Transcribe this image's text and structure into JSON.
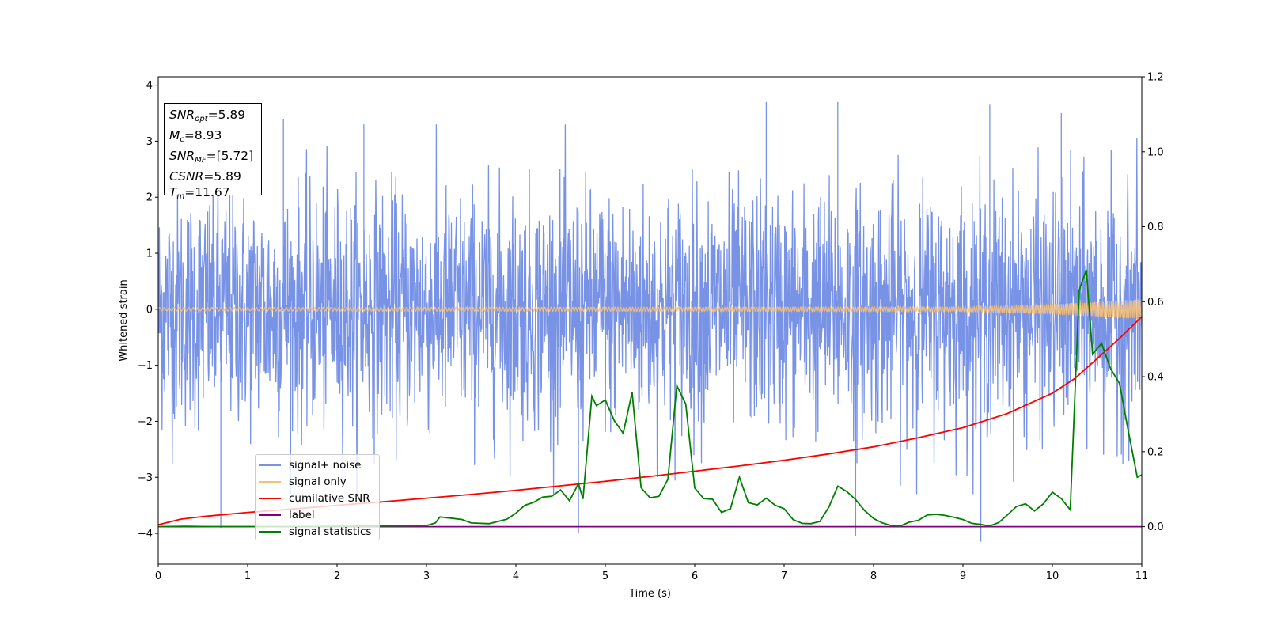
{
  "chart_data": {
    "type": "line",
    "xlabel": "Time (s)",
    "ylabel": "Whitened strain",
    "xlim": [
      0,
      11
    ],
    "ylim_left": [
      -4.55,
      4.15
    ],
    "ylim_right": [
      -0.1,
      1.2
    ],
    "x_ticks": [
      "0",
      "1",
      "2",
      "3",
      "4",
      "5",
      "6",
      "7",
      "8",
      "9",
      "10",
      "11"
    ],
    "y_ticks_left": [
      "−4",
      "−3",
      "−2",
      "−1",
      "0",
      "1",
      "2",
      "3",
      "4"
    ],
    "y_ticks_right": [
      "0.0",
      "0.2",
      "0.4",
      "0.6",
      "0.8",
      "1.0",
      "1.2"
    ],
    "legend_placement": "lower-left",
    "series": [
      {
        "name": "signal+ noise",
        "color": "#7893e6",
        "axis": "left",
        "description_values": {
          "typical_range": [
            -2.6,
            2.6
          ],
          "peaks": [
            [
              0.7,
              -3.9
            ],
            [
              1.4,
              3.4
            ],
            [
              2.3,
              3.3
            ],
            [
              4.7,
              -4.0
            ],
            [
              6.8,
              3.7
            ],
            [
              7.6,
              3.7
            ],
            [
              7.8,
              -4.05
            ],
            [
              9.2,
              -4.15
            ],
            [
              9.3,
              3.65
            ],
            [
              10.1,
              3.5
            ]
          ]
        }
      },
      {
        "name": "signal only",
        "color": "#f5c07a",
        "axis": "left",
        "envelope": [
          [
            0,
            0.03
          ],
          [
            9.0,
            0.04
          ],
          [
            9.5,
            0.06
          ],
          [
            10.0,
            0.09
          ],
          [
            10.5,
            0.13
          ],
          [
            11.0,
            0.18
          ]
        ]
      },
      {
        "name": "cumilative SNR",
        "color": "#ff0000",
        "axis": "right",
        "x": [
          0,
          0.25,
          0.5,
          1,
          1.5,
          2,
          2.5,
          3,
          3.5,
          4,
          4.5,
          5,
          5.5,
          6,
          6.5,
          7,
          7.5,
          8,
          8.5,
          9,
          9.5,
          10,
          10.25,
          10.5,
          10.75,
          11
        ],
        "y": [
          0.005,
          0.02,
          0.027,
          0.038,
          0.047,
          0.057,
          0.066,
          0.076,
          0.086,
          0.097,
          0.109,
          0.121,
          0.134,
          0.148,
          0.162,
          0.177,
          0.194,
          0.213,
          0.237,
          0.264,
          0.302,
          0.356,
          0.395,
          0.448,
          0.502,
          0.56
        ]
      },
      {
        "name": "label",
        "color": "#800080",
        "axis": "right",
        "x": [
          0,
          11
        ],
        "y": [
          0,
          0
        ]
      },
      {
        "name": "signal statistics",
        "color": "#008000",
        "axis": "right",
        "x": [
          0,
          0.3,
          0.6,
          1.0,
          1.5,
          2.0,
          2.5,
          3.0,
          3.1,
          3.15,
          3.3,
          3.4,
          3.5,
          3.7,
          3.9,
          4.0,
          4.1,
          4.2,
          4.3,
          4.4,
          4.5,
          4.6,
          4.7,
          4.75,
          4.85,
          4.9,
          5.0,
          5.1,
          5.2,
          5.3,
          5.4,
          5.5,
          5.6,
          5.7,
          5.8,
          5.9,
          6.0,
          6.1,
          6.2,
          6.3,
          6.4,
          6.5,
          6.6,
          6.7,
          6.8,
          6.9,
          7.0,
          7.1,
          7.2,
          7.3,
          7.4,
          7.5,
          7.6,
          7.7,
          7.8,
          7.9,
          8.0,
          8.1,
          8.2,
          8.3,
          8.4,
          8.5,
          8.6,
          8.7,
          8.8,
          8.9,
          9.0,
          9.1,
          9.2,
          9.3,
          9.4,
          9.5,
          9.6,
          9.7,
          9.8,
          9.9,
          10.0,
          10.1,
          10.2,
          10.3,
          10.38,
          10.45,
          10.55,
          10.65,
          10.75,
          10.85,
          10.95,
          11.0
        ],
        "y": [
          0.0,
          0.001,
          0.0,
          0.0,
          0.0,
          0.001,
          0.002,
          0.003,
          0.01,
          0.026,
          0.022,
          0.019,
          0.01,
          0.008,
          0.02,
          0.036,
          0.057,
          0.065,
          0.079,
          0.081,
          0.098,
          0.069,
          0.115,
          0.074,
          0.348,
          0.323,
          0.338,
          0.283,
          0.249,
          0.358,
          0.104,
          0.077,
          0.081,
          0.126,
          0.376,
          0.327,
          0.103,
          0.075,
          0.073,
          0.038,
          0.048,
          0.132,
          0.064,
          0.058,
          0.076,
          0.057,
          0.048,
          0.019,
          0.009,
          0.008,
          0.014,
          0.052,
          0.108,
          0.094,
          0.072,
          0.043,
          0.022,
          0.01,
          0.003,
          0.002,
          0.012,
          0.017,
          0.031,
          0.033,
          0.03,
          0.025,
          0.019,
          0.009,
          0.006,
          0.002,
          0.011,
          0.032,
          0.054,
          0.061,
          0.042,
          0.061,
          0.092,
          0.075,
          0.045,
          0.63,
          0.685,
          0.46,
          0.489,
          0.422,
          0.382,
          0.255,
          0.132,
          0.138
        ]
      }
    ]
  },
  "stats": {
    "snr_opt": {
      "name": "SNR",
      "sub": "opt",
      "value": "=5.89"
    },
    "mc": {
      "name": "M",
      "sub": "c",
      "value": "=8.93"
    },
    "snr_mf": {
      "name": "SNR",
      "sub": "MF",
      "value": "=[5.72]"
    },
    "csnr": {
      "name": "CSNR",
      "value": "=5.89"
    },
    "tm": {
      "name": "T",
      "sub": "m",
      "value": "=11.67"
    }
  },
  "legend": {
    "items": [
      {
        "label": "signal+ noise",
        "color": "#7893e6"
      },
      {
        "label": "signal only",
        "color": "#f5c07a"
      },
      {
        "label": "cumilative SNR",
        "color": "#ff0000"
      },
      {
        "label": "label",
        "color": "#800080"
      },
      {
        "label": "signal statistics",
        "color": "#008000"
      }
    ]
  }
}
